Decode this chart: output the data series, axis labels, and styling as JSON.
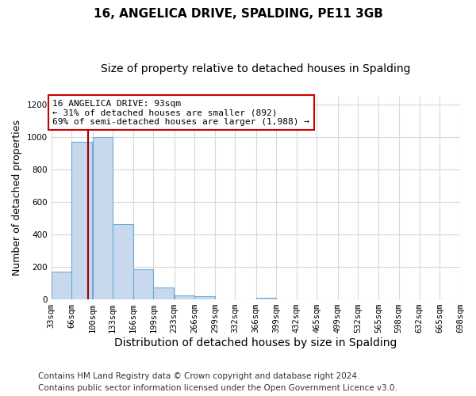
{
  "title": "16, ANGELICA DRIVE, SPALDING, PE11 3GB",
  "subtitle": "Size of property relative to detached houses in Spalding",
  "xlabel": "Distribution of detached houses by size in Spalding",
  "ylabel": "Number of detached properties",
  "bin_edges": [
    33,
    66,
    100,
    133,
    166,
    199,
    233,
    266,
    299,
    332,
    366,
    399,
    432,
    465,
    499,
    532,
    565,
    598,
    632,
    665,
    698
  ],
  "bin_heights": [
    170,
    970,
    1000,
    465,
    185,
    75,
    25,
    20,
    0,
    0,
    10,
    0,
    0,
    0,
    0,
    0,
    0,
    0,
    0,
    0
  ],
  "bar_color": "#c8d9ed",
  "bar_edge_color": "#6aaad4",
  "property_size": 93,
  "property_line_color": "#990000",
  "annotation_line1": "16 ANGELICA DRIVE: 93sqm",
  "annotation_line2": "← 31% of detached houses are smaller (892)",
  "annotation_line3": "69% of semi-detached houses are larger (1,988) →",
  "annotation_box_color": "#ffffff",
  "annotation_box_edge": "#cc0000",
  "ylim": [
    0,
    1250
  ],
  "yticks": [
    0,
    200,
    400,
    600,
    800,
    1000,
    1200
  ],
  "tick_labels": [
    "33sqm",
    "66sqm",
    "100sqm",
    "133sqm",
    "166sqm",
    "199sqm",
    "233sqm",
    "266sqm",
    "299sqm",
    "332sqm",
    "366sqm",
    "399sqm",
    "432sqm",
    "465sqm",
    "499sqm",
    "532sqm",
    "565sqm",
    "598sqm",
    "632sqm",
    "665sqm",
    "698sqm"
  ],
  "footer_line1": "Contains HM Land Registry data © Crown copyright and database right 2024.",
  "footer_line2": "Contains public sector information licensed under the Open Government Licence v3.0.",
  "fig_bg_color": "#ffffff",
  "plot_bg_color": "#ffffff",
  "grid_color": "#d8d8d8",
  "title_fontsize": 11,
  "subtitle_fontsize": 10,
  "xlabel_fontsize": 10,
  "ylabel_fontsize": 9,
  "tick_fontsize": 7.5,
  "footer_fontsize": 7.5
}
